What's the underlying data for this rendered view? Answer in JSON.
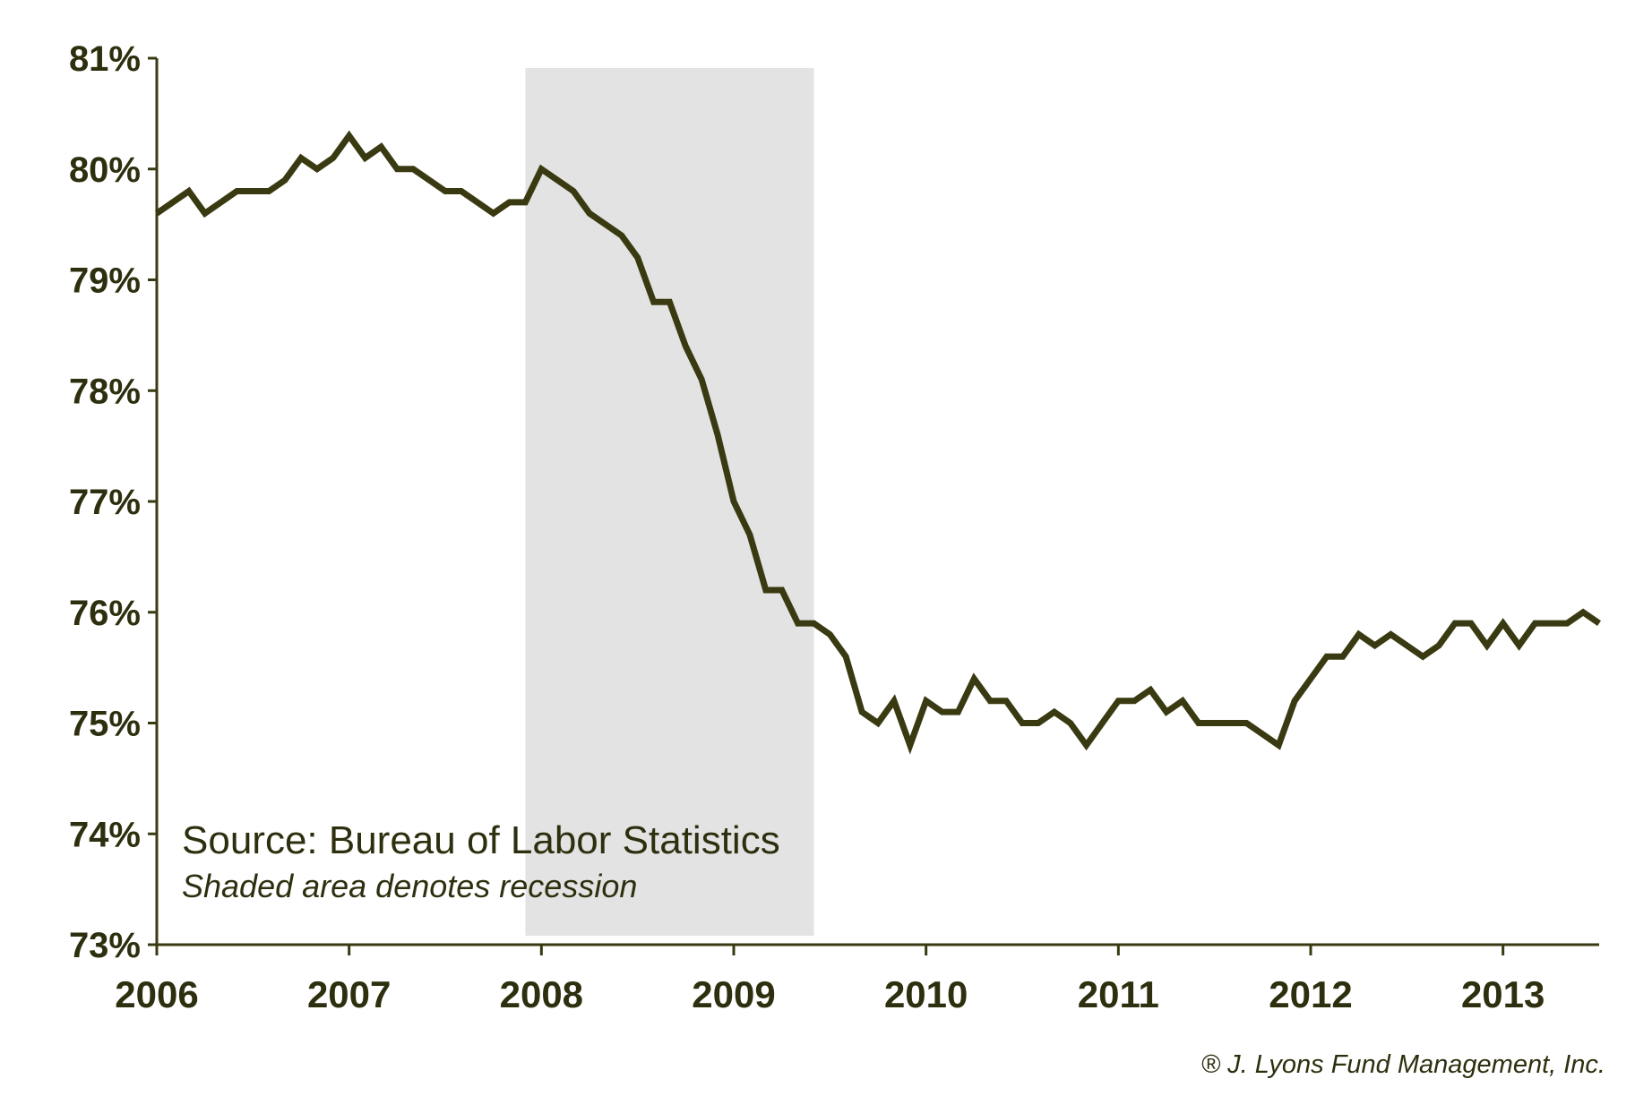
{
  "chart_data": {
    "type": "line",
    "title": "",
    "xlabel": "",
    "ylabel": "",
    "x_tick_labels": [
      "2006",
      "2007",
      "2008",
      "2009",
      "2010",
      "2011",
      "2012",
      "2013"
    ],
    "y_tick_labels": [
      "73%",
      "74%",
      "75%",
      "76%",
      "77%",
      "78%",
      "79%",
      "80%",
      "81%"
    ],
    "xlim": [
      "2006-01",
      "2013-07"
    ],
    "ylim": [
      73,
      81
    ],
    "grid": false,
    "legend": "none",
    "recession_shading": {
      "start": "2007-12",
      "end": "2009-06"
    },
    "line_color": "#3a3a12",
    "shading_color": "#e3e3e3",
    "series": [
      {
        "x": [
          "2006-01",
          "2006-02",
          "2006-03",
          "2006-04",
          "2006-05",
          "2006-06",
          "2006-07",
          "2006-08",
          "2006-09",
          "2006-10",
          "2006-11",
          "2006-12",
          "2007-01",
          "2007-02",
          "2007-03",
          "2007-04",
          "2007-05",
          "2007-06",
          "2007-07",
          "2007-08",
          "2007-09",
          "2007-10",
          "2007-11",
          "2007-12",
          "2008-01",
          "2008-02",
          "2008-03",
          "2008-04",
          "2008-05",
          "2008-06",
          "2008-07",
          "2008-08",
          "2008-09",
          "2008-10",
          "2008-11",
          "2008-12",
          "2009-01",
          "2009-02",
          "2009-03",
          "2009-04",
          "2009-05",
          "2009-06",
          "2009-07",
          "2009-08",
          "2009-09",
          "2009-10",
          "2009-11",
          "2009-12",
          "2010-01",
          "2010-02",
          "2010-03",
          "2010-04",
          "2010-05",
          "2010-06",
          "2010-07",
          "2010-08",
          "2010-09",
          "2010-10",
          "2010-11",
          "2010-12",
          "2011-01",
          "2011-02",
          "2011-03",
          "2011-04",
          "2011-05",
          "2011-06",
          "2011-07",
          "2011-08",
          "2011-09",
          "2011-10",
          "2011-11",
          "2011-12",
          "2012-01",
          "2012-02",
          "2012-03",
          "2012-04",
          "2012-05",
          "2012-06",
          "2012-07",
          "2012-08",
          "2012-09",
          "2012-10",
          "2012-11",
          "2012-12",
          "2013-01",
          "2013-02",
          "2013-03",
          "2013-04",
          "2013-05",
          "2013-06",
          "2013-07"
        ],
        "values": [
          79.6,
          79.7,
          79.8,
          79.6,
          79.7,
          79.8,
          79.8,
          79.8,
          79.9,
          80.1,
          80.0,
          80.1,
          80.3,
          80.1,
          80.2,
          80.0,
          80.0,
          79.9,
          79.8,
          79.8,
          79.7,
          79.6,
          79.7,
          79.7,
          80.0,
          79.9,
          79.8,
          79.6,
          79.5,
          79.4,
          79.2,
          78.8,
          78.8,
          78.4,
          78.1,
          77.6,
          77.0,
          76.7,
          76.2,
          76.2,
          75.9,
          75.9,
          75.8,
          75.6,
          75.1,
          75.0,
          75.2,
          74.8,
          75.2,
          75.1,
          75.1,
          75.4,
          75.2,
          75.2,
          75.0,
          75.0,
          75.1,
          75.0,
          74.8,
          75.0,
          75.2,
          75.2,
          75.3,
          75.1,
          75.2,
          75.0,
          75.0,
          75.0,
          75.0,
          74.9,
          74.8,
          75.2,
          75.4,
          75.6,
          75.6,
          75.8,
          75.7,
          75.8,
          75.7,
          75.6,
          75.7,
          75.9,
          75.9,
          75.7,
          75.9,
          75.7,
          75.9,
          75.9,
          75.9,
          76.0,
          75.9
        ]
      }
    ]
  },
  "annotations": {
    "source": "Source: Bureau of Labor Statistics",
    "note": "Shaded area denotes recession",
    "copyright": "® J. Lyons Fund Management, Inc."
  }
}
